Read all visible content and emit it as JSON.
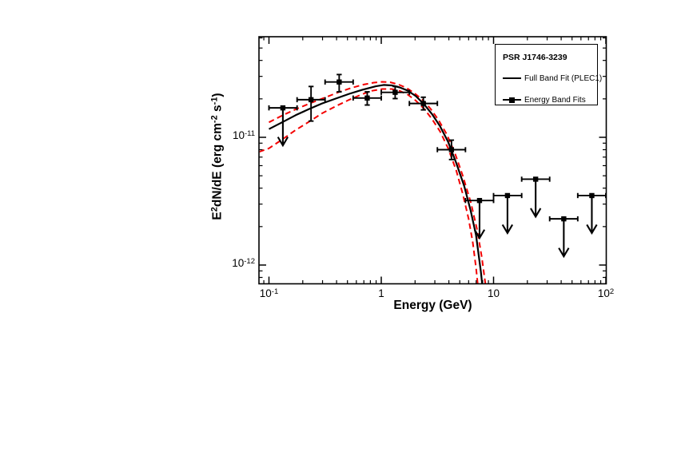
{
  "legend": {
    "title": "PSR J1746-3239",
    "items": [
      {
        "label": "Full Band Fit (PLEC1)",
        "marker": "line"
      },
      {
        "label": "Energy Band Fits",
        "marker": "line-with-square"
      }
    ]
  },
  "chart_data": {
    "type": "scatter",
    "title": "",
    "xlabel": "Energy (GeV)",
    "ylabel": "E^2 dN/dE (erg cm^-2 s^-1)",
    "ylabel_parts": [
      {
        "t": "E"
      },
      {
        "t": "2",
        "sup": true
      },
      {
        "t": "dN/dE (erg cm"
      },
      {
        "t": "-2",
        "sup": true
      },
      {
        "t": " s"
      },
      {
        "t": "-1",
        "sup": true
      },
      {
        "t": ")"
      }
    ],
    "xscale": "log",
    "yscale": "log",
    "xlim": [
      0.081,
      103
    ],
    "ylim": [
      7e-13,
      6.2e-11
    ],
    "grid": false,
    "legend_position": "top-right",
    "xticks": [
      {
        "value": 0.1,
        "base": "10",
        "exp": "-1"
      },
      {
        "value": 1,
        "base": "1"
      },
      {
        "value": 10,
        "base": "10"
      },
      {
        "value": 100,
        "base": "10",
        "exp": "2"
      }
    ],
    "yticks": [
      {
        "value": 1e-11,
        "base": "10",
        "exp": "-11"
      },
      {
        "value": 1e-12,
        "base": "10",
        "exp": "-12"
      }
    ],
    "colors": {
      "fit": "#000000",
      "band": "#f40000",
      "data": "#000000"
    },
    "series": [
      {
        "name": "Energy Band Fits",
        "role": "data",
        "points": [
          {
            "E": 0.133,
            "E_lo": 0.1,
            "E_hi": 0.178,
            "F": 1.7e-11,
            "upper_limit": true
          },
          {
            "E": 0.237,
            "E_lo": 0.178,
            "E_hi": 0.316,
            "F": 1.97e-11,
            "F_hi": 2.5e-11,
            "F_lo": 1.34e-11,
            "upper_limit": false
          },
          {
            "E": 0.422,
            "E_lo": 0.316,
            "E_hi": 0.562,
            "F": 2.71e-11,
            "F_hi": 3.1e-11,
            "F_lo": 2.27e-11,
            "upper_limit": false
          },
          {
            "E": 0.75,
            "E_lo": 0.562,
            "E_hi": 1.0,
            "F": 2.03e-11,
            "F_hi": 2.27e-11,
            "F_lo": 1.79e-11,
            "upper_limit": false
          },
          {
            "E": 1.33,
            "E_lo": 1.0,
            "E_hi": 1.78,
            "F": 2.25e-11,
            "F_hi": 2.5e-11,
            "F_lo": 2.01e-11,
            "upper_limit": false
          },
          {
            "E": 2.37,
            "E_lo": 1.78,
            "E_hi": 3.16,
            "F": 1.84e-11,
            "F_hi": 2.06e-11,
            "F_lo": 1.64e-11,
            "upper_limit": false
          },
          {
            "E": 4.22,
            "E_lo": 3.16,
            "E_hi": 5.62,
            "F": 8e-12,
            "F_hi": 9.5e-12,
            "F_lo": 6.7e-12,
            "upper_limit": false
          },
          {
            "E": 7.5,
            "E_lo": 5.62,
            "E_hi": 10.0,
            "F": 3.2e-12,
            "upper_limit": true
          },
          {
            "E": 13.3,
            "E_lo": 10.0,
            "E_hi": 17.8,
            "F": 3.5e-12,
            "upper_limit": true
          },
          {
            "E": 23.7,
            "E_lo": 17.8,
            "E_hi": 31.6,
            "F": 4.7e-12,
            "upper_limit": true
          },
          {
            "E": 42.2,
            "E_lo": 31.6,
            "E_hi": 56.2,
            "F": 2.3e-12,
            "upper_limit": true
          },
          {
            "E": 75.0,
            "E_lo": 56.2,
            "E_hi": 100.0,
            "F": 3.5e-12,
            "upper_limit": true
          }
        ]
      },
      {
        "name": "Full Band Fit (PLEC1)",
        "role": "fit",
        "style": "solid",
        "points": [
          [
            0.1,
            1.16e-11
          ],
          [
            0.131,
            1.31e-11
          ],
          [
            0.173,
            1.49e-11
          ],
          [
            0.229,
            1.67e-11
          ],
          [
            0.297,
            1.84e-11
          ],
          [
            0.393,
            2.01e-11
          ],
          [
            0.519,
            2.19e-11
          ],
          [
            0.675,
            2.35e-11
          ],
          [
            0.894,
            2.51e-11
          ],
          [
            1.05,
            2.57e-11
          ],
          [
            1.24,
            2.55e-11
          ],
          [
            1.46,
            2.46e-11
          ],
          [
            1.72,
            2.32e-11
          ],
          [
            2.03,
            2.1e-11
          ],
          [
            2.4,
            1.82e-11
          ],
          [
            2.83,
            1.52e-11
          ],
          [
            3.34,
            1.22e-11
          ],
          [
            3.94,
            9.2e-12
          ],
          [
            4.65,
            6.3e-12
          ],
          [
            5.48,
            4.15e-12
          ],
          [
            6.26,
            2.66e-12
          ],
          [
            6.99,
            1.71e-12
          ],
          [
            7.7,
            8.9e-13
          ],
          [
            7.95,
            6.9e-13
          ]
        ]
      },
      {
        "name": "Fit uncertainty band (upper)",
        "role": "band-upper",
        "style": "dashed",
        "points": [
          [
            0.1,
            1.31e-11
          ],
          [
            0.135,
            1.5e-11
          ],
          [
            0.179,
            1.68e-11
          ],
          [
            0.241,
            1.87e-11
          ],
          [
            0.317,
            2.05e-11
          ],
          [
            0.42,
            2.26e-11
          ],
          [
            0.546,
            2.44e-11
          ],
          [
            0.698,
            2.59e-11
          ],
          [
            0.86,
            2.68e-11
          ],
          [
            1.02,
            2.72e-11
          ],
          [
            1.2,
            2.7e-11
          ],
          [
            1.41,
            2.6e-11
          ],
          [
            1.67,
            2.44e-11
          ],
          [
            1.97,
            2.22e-11
          ],
          [
            2.32,
            1.97e-11
          ],
          [
            2.74,
            1.68e-11
          ],
          [
            3.23,
            1.37e-11
          ],
          [
            3.82,
            1.06e-11
          ],
          [
            4.51,
            7.6e-12
          ],
          [
            5.32,
            5e-12
          ],
          [
            6.28,
            3.08e-12
          ],
          [
            7.15,
            1.88e-12
          ],
          [
            7.84,
            1.16e-12
          ],
          [
            8.5,
            6.9e-13
          ]
        ]
      },
      {
        "name": "Fit uncertainty band (lower)",
        "role": "band-lower",
        "style": "dashed",
        "points": [
          [
            0.0815,
            7.7e-12
          ],
          [
            0.1,
            8.2e-12
          ],
          [
            0.131,
            9.6e-12
          ],
          [
            0.173,
            1.14e-11
          ],
          [
            0.229,
            1.33e-11
          ],
          [
            0.297,
            1.54e-11
          ],
          [
            0.393,
            1.75e-11
          ],
          [
            0.519,
            1.97e-11
          ],
          [
            0.664,
            2.16e-11
          ],
          [
            0.82,
            2.31e-11
          ],
          [
            1.02,
            2.39e-11
          ],
          [
            1.24,
            2.39e-11
          ],
          [
            1.46,
            2.31e-11
          ],
          [
            1.72,
            2.16e-11
          ],
          [
            2.03,
            1.94e-11
          ],
          [
            2.4,
            1.68e-11
          ],
          [
            2.83,
            1.39e-11
          ],
          [
            3.34,
            1.11e-11
          ],
          [
            3.94,
            8.2e-12
          ],
          [
            4.65,
            5.5e-12
          ],
          [
            5.32,
            3.6e-12
          ],
          [
            6.0,
            2.3e-12
          ],
          [
            6.53,
            1.5e-12
          ],
          [
            6.99,
            9.5e-13
          ],
          [
            7.25,
            6.9e-13
          ]
        ]
      }
    ]
  }
}
